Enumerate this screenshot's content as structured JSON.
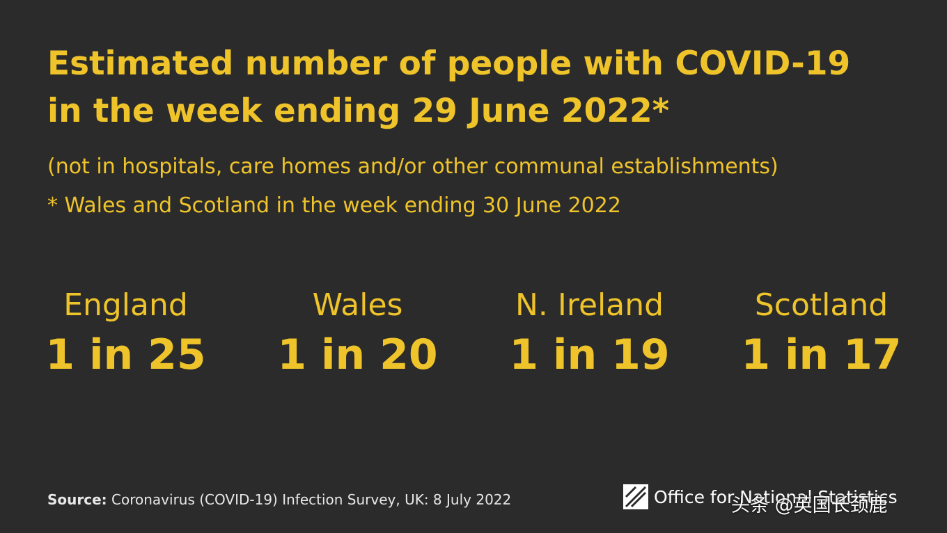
{
  "title_lines": [
    "Estimated number of people with COVID-19",
    "in the week ending 29 June 2022*"
  ],
  "subtitle": "(not in hospitals, care homes and/or other communal establishments)",
  "note": "* Wales and Scotland in the week ending 30 June 2022",
  "stats": [
    {
      "nation": "England",
      "value": "1 in 25"
    },
    {
      "nation": "Wales",
      "value": "1 in 20"
    },
    {
      "nation": "N. Ireland",
      "value": "1 in 19"
    },
    {
      "nation": "Scotland",
      "value": "1 in 17"
    }
  ],
  "source": {
    "label": "Source:",
    "text": "Coronavirus (COVID-19) Infection Survey, UK: 8 July 2022"
  },
  "logo": "Office for National Statistics",
  "watermark": "头条 @英国长颈鹿"
}
